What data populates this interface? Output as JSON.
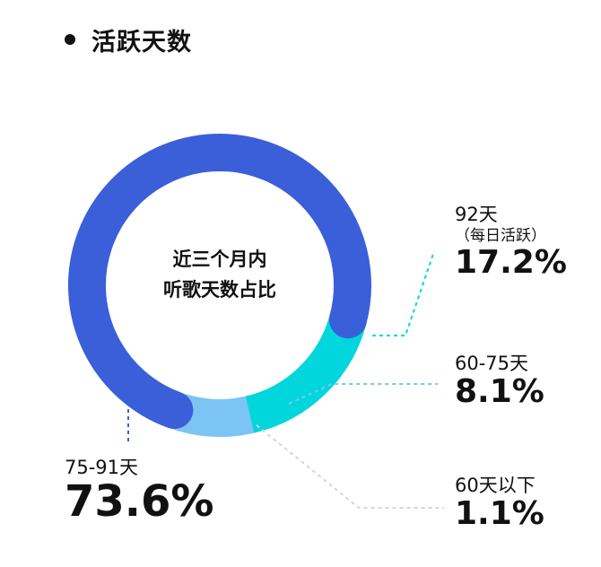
{
  "title": "活跃天数",
  "center_label": [
    "近三个月内",
    "听歌天数占比"
  ],
  "colors": {
    "d75_91": "#3a5fd9",
    "d92": "#00d6dc",
    "d60_75": "#7cc4f4",
    "d60_below": "#e3e3e3",
    "text": "#111111"
  },
  "chart_data": {
    "type": "pie",
    "title": "活跃天数",
    "donut": true,
    "center_text": "近三个月内 听歌天数占比",
    "slices": [
      {
        "label": "75-91天",
        "value": 73.6,
        "color": "#3a5fd9",
        "pct_text": "73.6%"
      },
      {
        "label": "92天",
        "sublabel": "（每日活跃）",
        "value": 17.2,
        "color": "#00d6dc",
        "pct_text": "17.2%"
      },
      {
        "label": "60-75天",
        "value": 8.1,
        "color": "#7cc4f4",
        "pct_text": "8.1%"
      },
      {
        "label": "60天以下",
        "value": 1.1,
        "color": "#e3e3e3",
        "pct_text": "1.1%"
      }
    ]
  }
}
